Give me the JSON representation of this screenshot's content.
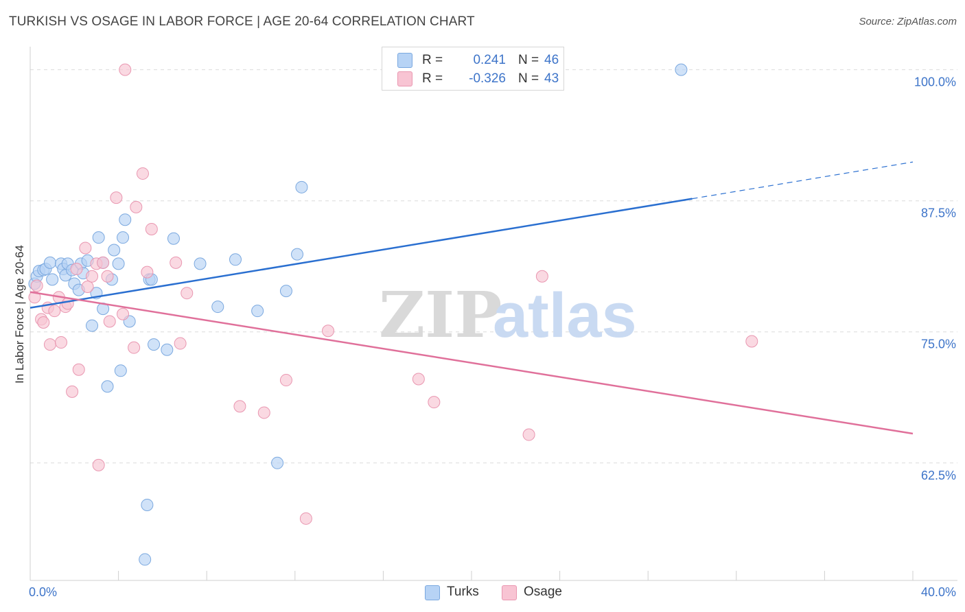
{
  "header": {
    "title": "TURKISH VS OSAGE IN LABOR FORCE | AGE 20-64 CORRELATION CHART",
    "source": "Source: ZipAtlas.com"
  },
  "watermark": {
    "zip": "ZIP",
    "atlas": "atlas"
  },
  "legend": {
    "rows": [
      {
        "r_label": "R =",
        "r_value": "0.241",
        "n_label": "N =",
        "n_value": "46"
      },
      {
        "r_label": "R =",
        "r_value": "-0.326",
        "n_label": "N =",
        "n_value": "43"
      }
    ]
  },
  "bottom_legend": {
    "turks": "Turks",
    "osage": "Osage"
  },
  "colors": {
    "turks_fill": "#b7d3f5",
    "turks_stroke": "#7aa8df",
    "turks_line": "#2a6fd0",
    "osage_fill": "#f8c4d3",
    "osage_stroke": "#e996b0",
    "osage_line": "#e0709a",
    "tick_text": "#3d74c9",
    "grid": "#dcdcdc"
  },
  "chart_data": {
    "type": "scatter",
    "title": "TURKISH VS OSAGE IN LABOR FORCE | AGE 20-64 CORRELATION CHART",
    "xlabel": "",
    "ylabel": "In Labor Force | Age 20-64",
    "xlim": [
      0,
      40
    ],
    "ylim": [
      51.3,
      102.2
    ],
    "x_tick_labels": [
      "0.0%",
      "40.0%"
    ],
    "x_tick_values": [
      0,
      40
    ],
    "x_minor_ticks": [
      4,
      8,
      12,
      16,
      20,
      24,
      28,
      32,
      36,
      40
    ],
    "y_ticks": [
      {
        "value": 62.5,
        "label": "62.5%"
      },
      {
        "value": 75.0,
        "label": "75.0%"
      },
      {
        "value": 87.5,
        "label": "87.5%"
      },
      {
        "value": 100.0,
        "label": "100.0%"
      }
    ],
    "grid": true,
    "legend_position": "top-center",
    "series": [
      {
        "name": "Turks",
        "r": 0.241,
        "n": 46,
        "trend": {
          "x0": 0,
          "y0": 77.3,
          "x1": 30,
          "y1": 87.7,
          "dash_to_x": 40,
          "dash_to_y": 91.2
        },
        "points": [
          [
            0.2,
            79.6
          ],
          [
            0.3,
            80.3
          ],
          [
            0.4,
            80.8
          ],
          [
            0.6,
            80.9
          ],
          [
            0.7,
            81.0
          ],
          [
            0.9,
            81.6
          ],
          [
            1.0,
            80.0
          ],
          [
            1.4,
            81.5
          ],
          [
            1.5,
            81.0
          ],
          [
            1.6,
            80.4
          ],
          [
            1.7,
            81.5
          ],
          [
            1.9,
            80.9
          ],
          [
            2.0,
            79.6
          ],
          [
            2.2,
            79.0
          ],
          [
            2.3,
            81.5
          ],
          [
            2.4,
            80.6
          ],
          [
            2.6,
            81.8
          ],
          [
            2.8,
            75.6
          ],
          [
            3.0,
            78.7
          ],
          [
            3.1,
            84.0
          ],
          [
            3.3,
            81.6
          ],
          [
            3.3,
            77.2
          ],
          [
            3.5,
            69.8
          ],
          [
            3.7,
            80.0
          ],
          [
            3.8,
            82.8
          ],
          [
            4.0,
            81.5
          ],
          [
            4.1,
            71.3
          ],
          [
            4.2,
            84.0
          ],
          [
            4.3,
            85.7
          ],
          [
            4.5,
            76.0
          ],
          [
            5.3,
            58.5
          ],
          [
            5.4,
            80.0
          ],
          [
            5.5,
            80.0
          ],
          [
            5.6,
            73.8
          ],
          [
            6.2,
            73.3
          ],
          [
            6.5,
            83.9
          ],
          [
            7.7,
            81.5
          ],
          [
            8.5,
            77.4
          ],
          [
            9.3,
            81.9
          ],
          [
            10.3,
            77.0
          ],
          [
            11.2,
            62.5
          ],
          [
            11.6,
            78.9
          ],
          [
            12.1,
            82.4
          ],
          [
            12.3,
            88.8
          ],
          [
            29.5,
            100.0
          ],
          [
            5.2,
            53.3
          ]
        ]
      },
      {
        "name": "Osage",
        "r": -0.326,
        "n": 43,
        "trend": {
          "x0": 0,
          "y0": 78.8,
          "x1": 40,
          "y1": 65.3
        },
        "points": [
          [
            0.2,
            78.3
          ],
          [
            0.3,
            79.4
          ],
          [
            0.5,
            76.2
          ],
          [
            0.6,
            75.9
          ],
          [
            0.8,
            77.3
          ],
          [
            0.9,
            73.8
          ],
          [
            1.1,
            77.0
          ],
          [
            1.3,
            78.3
          ],
          [
            1.4,
            74.0
          ],
          [
            1.6,
            77.4
          ],
          [
            1.7,
            77.7
          ],
          [
            1.9,
            69.3
          ],
          [
            2.1,
            81.0
          ],
          [
            2.2,
            71.4
          ],
          [
            2.5,
            83.0
          ],
          [
            2.6,
            79.3
          ],
          [
            2.8,
            80.3
          ],
          [
            3.0,
            81.5
          ],
          [
            3.1,
            62.3
          ],
          [
            3.3,
            81.6
          ],
          [
            3.5,
            80.3
          ],
          [
            3.6,
            76.0
          ],
          [
            3.9,
            87.8
          ],
          [
            4.2,
            76.7
          ],
          [
            4.7,
            73.5
          ],
          [
            4.8,
            86.9
          ],
          [
            5.1,
            90.1
          ],
          [
            5.3,
            80.7
          ],
          [
            5.5,
            84.8
          ],
          [
            6.6,
            81.6
          ],
          [
            6.8,
            73.9
          ],
          [
            7.1,
            78.7
          ],
          [
            9.5,
            67.9
          ],
          [
            10.6,
            67.3
          ],
          [
            11.6,
            70.4
          ],
          [
            12.5,
            57.2
          ],
          [
            13.5,
            75.1
          ],
          [
            17.6,
            70.5
          ],
          [
            18.3,
            68.3
          ],
          [
            22.6,
            65.2
          ],
          [
            23.2,
            80.3
          ],
          [
            32.7,
            74.1
          ],
          [
            4.3,
            100.0
          ]
        ]
      }
    ]
  }
}
